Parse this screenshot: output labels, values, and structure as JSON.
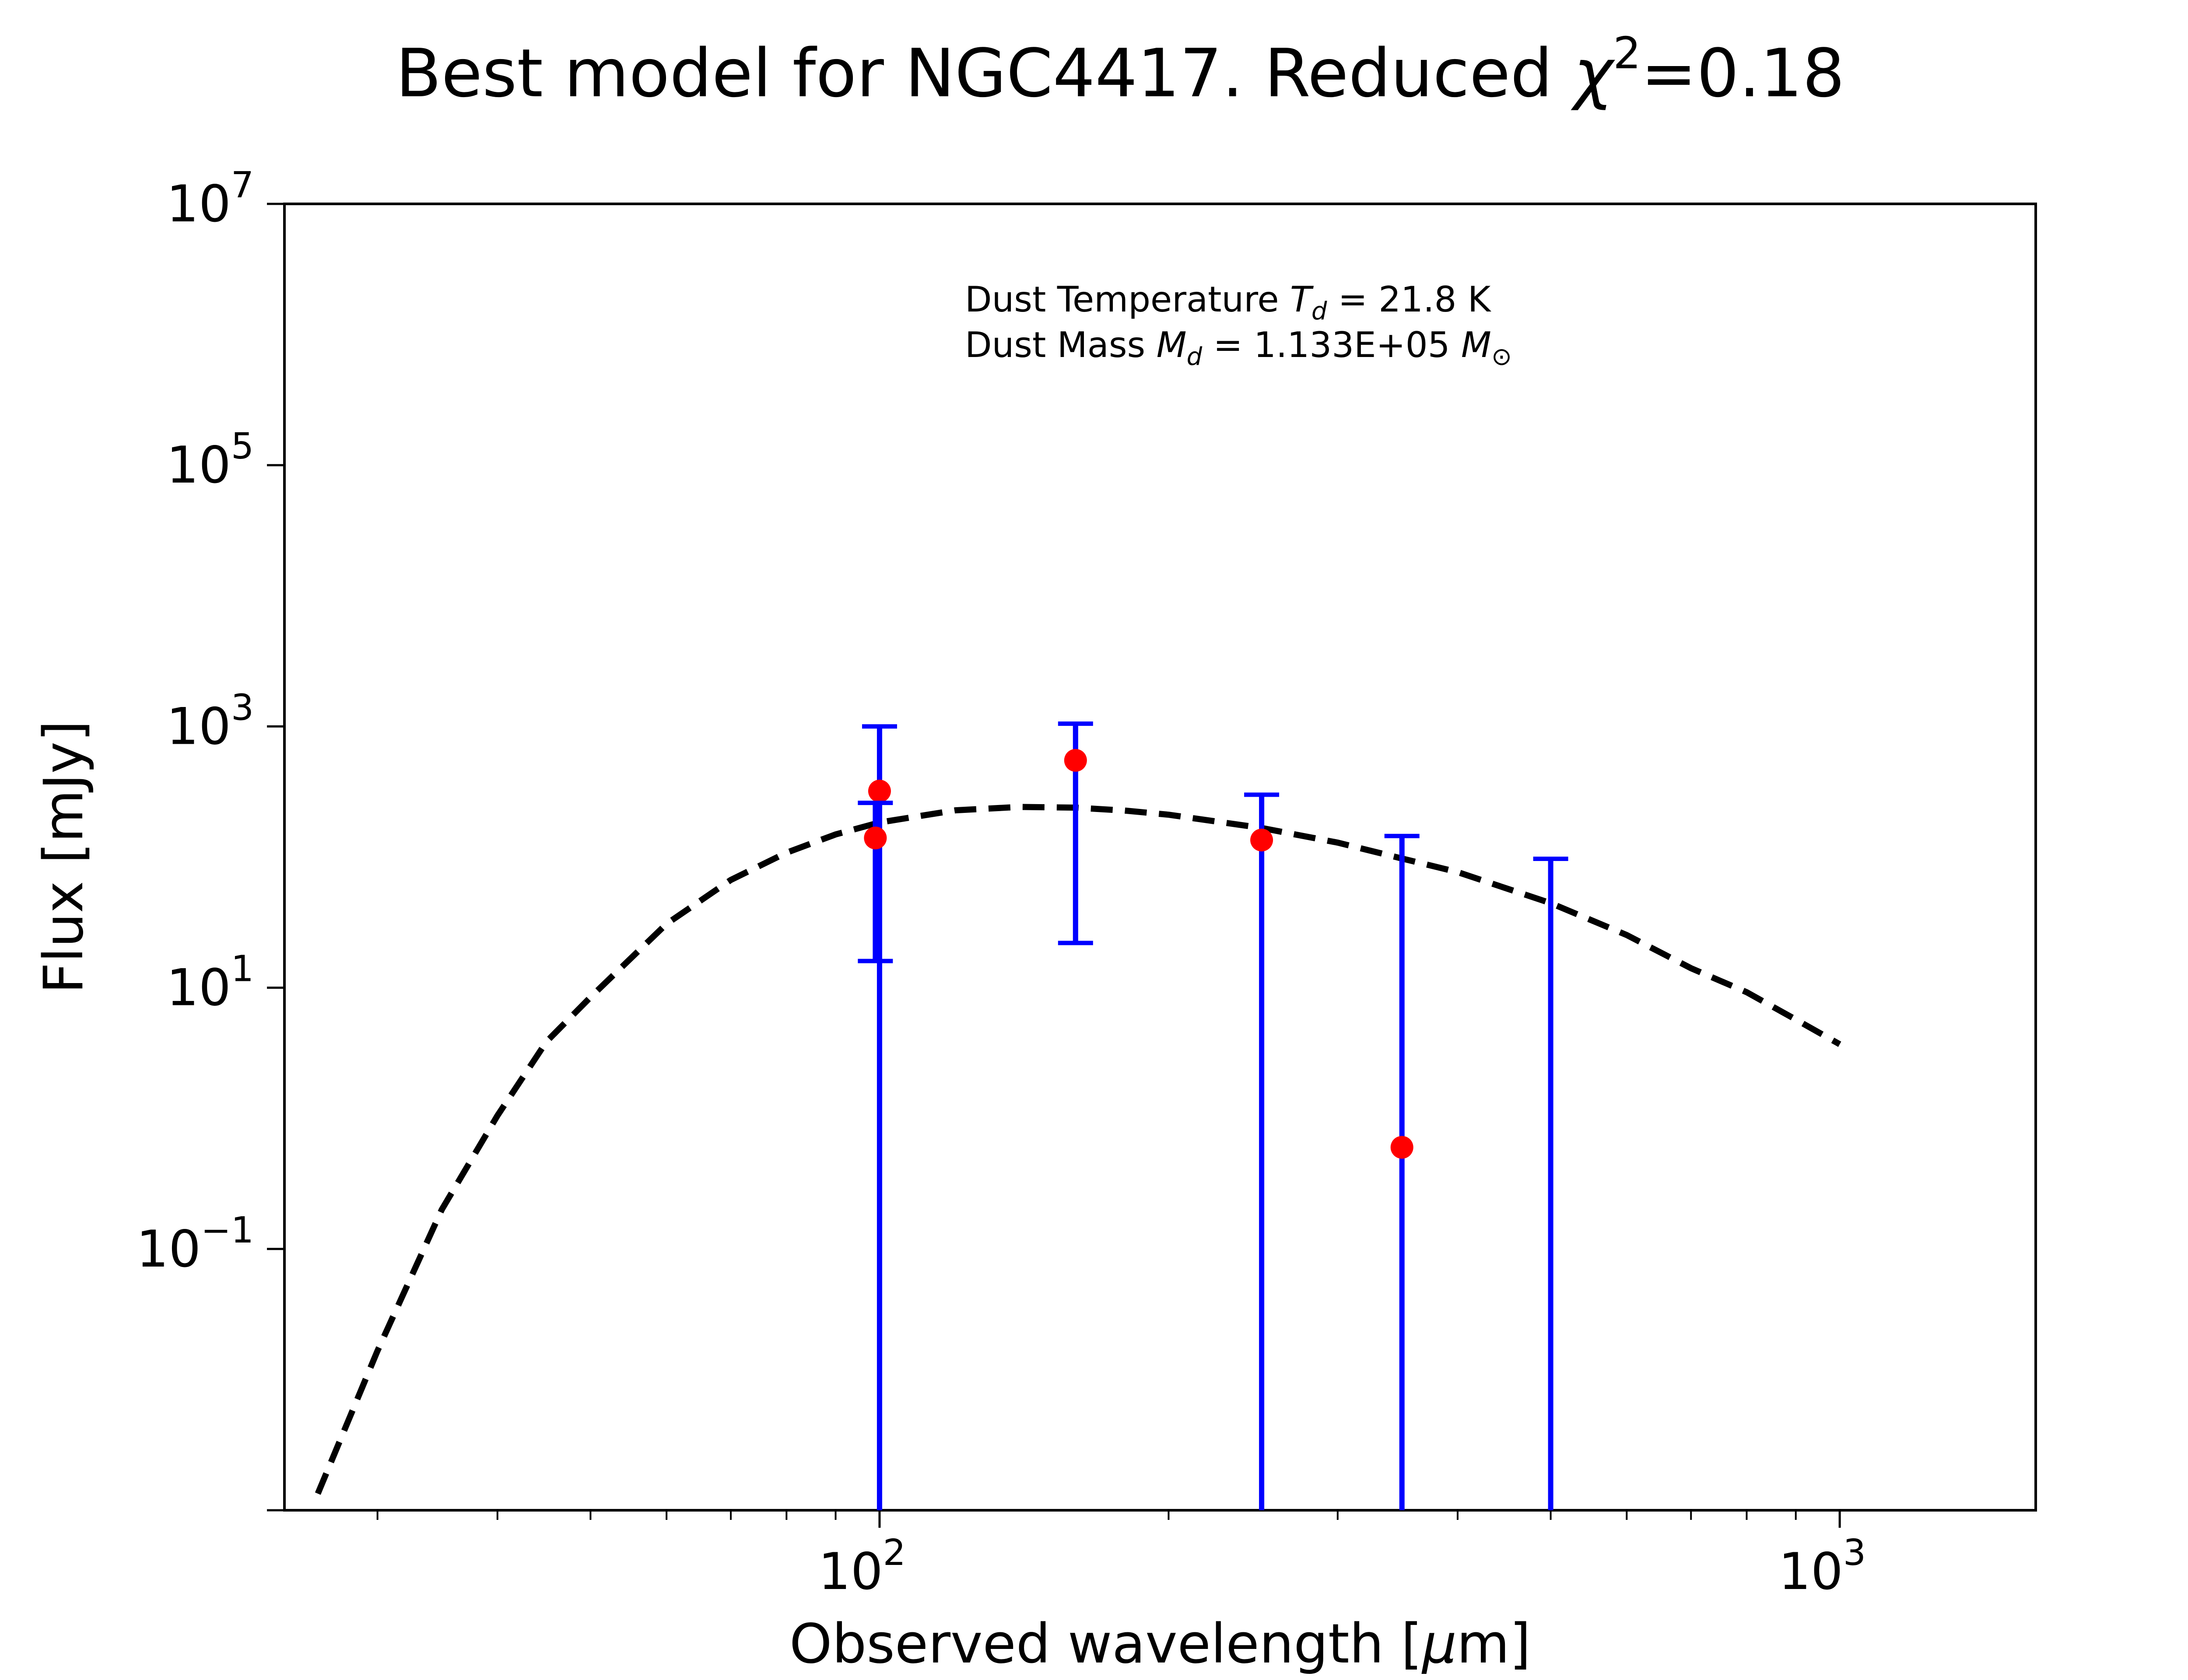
{
  "chart_data": {
    "type": "scatter",
    "title": {
      "main": "Best model for NGC4417. Reduced ",
      "chi_symbol": "χ",
      "chi_exponent": "2",
      "chi_value": "=0.18"
    },
    "xlabel": {
      "prefix": "Observed wavelength [",
      "mu": "μ",
      "suffix": "m]"
    },
    "ylabel": "Flux [mJy]",
    "xscale": "log",
    "yscale": "log",
    "xlim": [
      24,
      1600
    ],
    "ylim": [
      0.001,
      10000000
    ],
    "grid": false,
    "x_ticks": [
      {
        "value": 100,
        "base": "10",
        "exp": "2"
      },
      {
        "value": 1000,
        "base": "10",
        "exp": "3"
      }
    ],
    "y_ticks": [
      {
        "value": 0.1,
        "base": "10",
        "exp": "−1"
      },
      {
        "value": 10,
        "base": "10",
        "exp": "1"
      },
      {
        "value": 1000,
        "base": "10",
        "exp": "3"
      },
      {
        "value": 100000,
        "base": "10",
        "exp": "5"
      },
      {
        "value": 10000000,
        "base": "10",
        "exp": "7"
      }
    ],
    "annotations": {
      "temperature": {
        "prefix": "Dust Temperature ",
        "symbol": "T",
        "sub": "d",
        "value": " = 21.8 K"
      },
      "mass": {
        "prefix": "Dust Mass ",
        "symbol": "M",
        "sub": "d",
        "value": " = 1.133E+05 ",
        "unit_symbol": "M",
        "unit_sub": "⊙"
      }
    },
    "series": [
      {
        "kind": "model",
        "color": "#000000",
        "style": "dashed",
        "x": [
          26,
          30,
          35,
          40,
          45,
          50,
          60,
          70,
          80,
          90,
          100,
          120,
          140,
          160,
          180,
          200,
          250,
          300,
          350,
          400,
          500,
          600,
          700,
          800,
          900,
          1000
        ],
        "y": [
          0.00134,
          0.0166,
          0.2,
          1.05,
          3.87,
          8.46,
          30.8,
          66.8,
          108,
          149,
          184,
          228,
          242,
          239,
          227,
          211,
          167,
          129,
          97.5,
          76.7,
          44.4,
          25.3,
          14.1,
          9.24,
          5.71,
          3.69
        ]
      },
      {
        "kind": "observations",
        "color": "#ff0000",
        "error_color": "#0000ff",
        "points": [
          {
            "x": 100,
            "y": 320,
            "yerr_low": 0.001,
            "yerr_high": 1000
          },
          {
            "x": 99,
            "y": 140,
            "yerr_low": 16,
            "yerr_high": 260
          },
          {
            "x": 160,
            "y": 550,
            "yerr_low": 22,
            "yerr_high": 1050
          },
          {
            "x": 250,
            "y": 135,
            "yerr_low": 0.001,
            "yerr_high": 300
          },
          {
            "x": 350,
            "y": 0.6,
            "yerr_low": 0.001,
            "yerr_high": 145
          },
          {
            "x": 500,
            "y": null,
            "yerr_low": 0.001,
            "yerr_high": 97
          }
        ]
      }
    ]
  }
}
